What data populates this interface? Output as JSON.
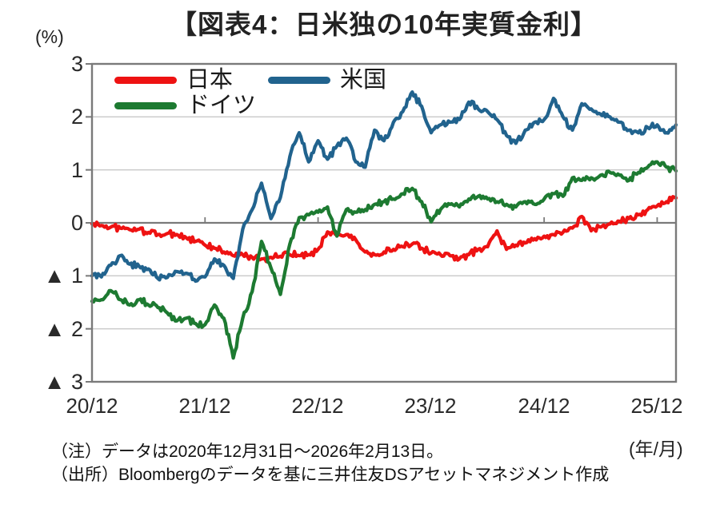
{
  "title": "【図表4：日米独の10年実質金利】",
  "notes": [
    "（注）データは2020年12月31日～2026年2月13日。",
    "（出所）Bloombergのデータを基に三井住友DSアセットマネジメント作成"
  ],
  "colors": {
    "japan": "#ee1212",
    "us": "#21638e",
    "germany": "#1d7a31",
    "grid": "#c9c9c9",
    "axis": "#7a7a7a"
  },
  "chart_data": {
    "type": "line",
    "title": "【図表4：日米独の10年実質金利】",
    "y_axis_unit": "(%)",
    "x_axis_unit": "(年/月)",
    "ylim": [
      -3,
      3
    ],
    "grid": true,
    "legend_position": "top-left-inside",
    "y_ticks": [
      3,
      2,
      1,
      0,
      -1,
      -2,
      -3
    ],
    "y_tick_labels": [
      "3",
      "2",
      "1",
      "0",
      "▲ 1",
      "▲ 2",
      "▲ 3"
    ],
    "x_tick_labels": [
      "20/12",
      "21/12",
      "22/12",
      "23/12",
      "24/12",
      "25/12"
    ],
    "x_tick_months": [
      0,
      12,
      24,
      36,
      48,
      60
    ],
    "x_months_span": 62,
    "series": [
      {
        "name": "日本",
        "color": "#ee1212",
        "monthly_values": [
          -0.02,
          -0.05,
          -0.08,
          -0.1,
          -0.13,
          -0.12,
          -0.18,
          -0.22,
          -0.2,
          -0.22,
          -0.28,
          -0.35,
          -0.42,
          -0.48,
          -0.55,
          -0.62,
          -0.6,
          -0.65,
          -0.68,
          -0.65,
          -0.63,
          -0.6,
          -0.62,
          -0.6,
          -0.5,
          -0.17,
          -0.22,
          -0.22,
          -0.32,
          -0.55,
          -0.6,
          -0.55,
          -0.5,
          -0.45,
          -0.4,
          -0.48,
          -0.57,
          -0.6,
          -0.62,
          -0.68,
          -0.6,
          -0.5,
          -0.45,
          -0.15,
          -0.5,
          -0.42,
          -0.38,
          -0.3,
          -0.25,
          -0.22,
          -0.18,
          -0.1,
          0.12,
          -0.15,
          -0.08,
          -0.02,
          0.03,
          0.08,
          0.15,
          0.25,
          0.32,
          0.4,
          0.47
        ]
      },
      {
        "name": "米国",
        "color": "#21638e",
        "monthly_values": [
          -1.0,
          -1.02,
          -0.8,
          -0.62,
          -0.78,
          -0.82,
          -0.87,
          -1.05,
          -1.03,
          -0.92,
          -0.95,
          -1.1,
          -1.02,
          -0.68,
          -0.8,
          -1.05,
          -0.12,
          0.25,
          0.75,
          0.08,
          0.48,
          1.25,
          1.7,
          1.15,
          1.55,
          1.2,
          1.45,
          1.6,
          1.15,
          1.05,
          1.75,
          1.55,
          1.9,
          2.1,
          2.47,
          2.2,
          1.7,
          1.85,
          1.9,
          1.95,
          2.28,
          2.15,
          2.1,
          1.95,
          1.65,
          1.5,
          1.75,
          1.9,
          1.95,
          2.35,
          2.0,
          1.75,
          2.25,
          2.15,
          2.05,
          2.0,
          1.9,
          1.75,
          1.7,
          1.8,
          1.85,
          1.7,
          1.85
        ]
      },
      {
        "name": "ドイツ",
        "color": "#1d7a31",
        "monthly_values": [
          -1.48,
          -1.45,
          -1.28,
          -1.45,
          -1.55,
          -1.45,
          -1.55,
          -1.6,
          -1.7,
          -1.85,
          -1.8,
          -1.9,
          -1.92,
          -1.55,
          -1.8,
          -2.55,
          -1.8,
          -1.3,
          -0.35,
          -0.85,
          -1.35,
          -0.4,
          0.1,
          0.15,
          0.2,
          0.3,
          -0.25,
          0.25,
          0.2,
          0.25,
          0.35,
          0.4,
          0.45,
          0.55,
          0.65,
          0.4,
          0.02,
          0.25,
          0.35,
          0.3,
          0.45,
          0.5,
          0.45,
          0.4,
          0.35,
          0.3,
          0.4,
          0.35,
          0.45,
          0.55,
          0.5,
          0.85,
          0.8,
          0.85,
          0.9,
          0.95,
          0.9,
          0.8,
          0.95,
          1.05,
          1.15,
          1.05,
          0.98
        ]
      }
    ]
  }
}
